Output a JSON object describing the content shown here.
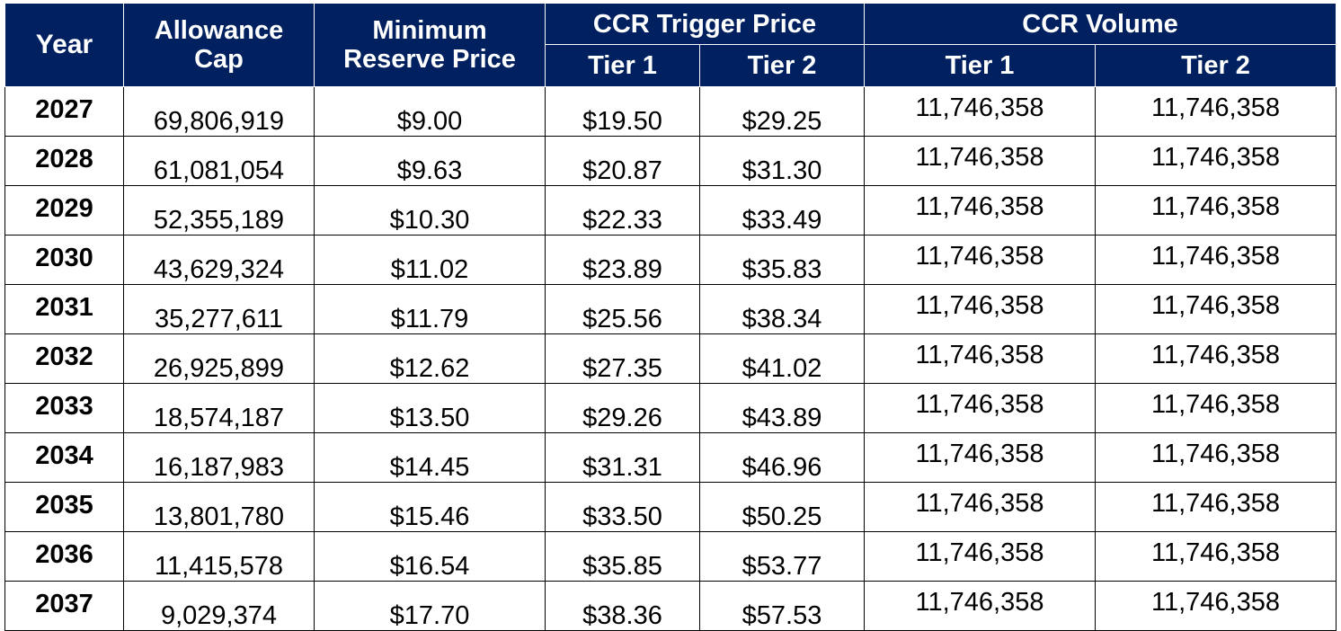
{
  "header": {
    "year": "Year",
    "cap_line1": "Allowance",
    "cap_line2": "Cap",
    "min_line1": "Minimum",
    "min_line2": "Reserve Price",
    "trigger": "CCR Trigger Price",
    "volume": "CCR Volume",
    "tier1": "Tier 1",
    "tier2": "Tier 2"
  },
  "rows": [
    {
      "year": "2027",
      "cap": "69,806,919",
      "min": "$9.00",
      "t1": "$19.50",
      "t2": "$29.25",
      "v1": "11,746,358",
      "v2": "11,746,358"
    },
    {
      "year": "2028",
      "cap": "61,081,054",
      "min": "$9.63",
      "t1": "$20.87",
      "t2": "$31.30",
      "v1": "11,746,358",
      "v2": "11,746,358"
    },
    {
      "year": "2029",
      "cap": "52,355,189",
      "min": "$10.30",
      "t1": "$22.33",
      "t2": "$33.49",
      "v1": "11,746,358",
      "v2": "11,746,358"
    },
    {
      "year": "2030",
      "cap": "43,629,324",
      "min": "$11.02",
      "t1": "$23.89",
      "t2": "$35.83",
      "v1": "11,746,358",
      "v2": "11,746,358"
    },
    {
      "year": "2031",
      "cap": "35,277,611",
      "min": "$11.79",
      "t1": "$25.56",
      "t2": "$38.34",
      "v1": "11,746,358",
      "v2": "11,746,358"
    },
    {
      "year": "2032",
      "cap": "26,925,899",
      "min": "$12.62",
      "t1": "$27.35",
      "t2": "$41.02",
      "v1": "11,746,358",
      "v2": "11,746,358"
    },
    {
      "year": "2033",
      "cap": "18,574,187",
      "min": "$13.50",
      "t1": "$29.26",
      "t2": "$43.89",
      "v1": "11,746,358",
      "v2": "11,746,358"
    },
    {
      "year": "2034",
      "cap": "16,187,983",
      "min": "$14.45",
      "t1": "$31.31",
      "t2": "$46.96",
      "v1": "11,746,358",
      "v2": "11,746,358"
    },
    {
      "year": "2035",
      "cap": "13,801,780",
      "min": "$15.46",
      "t1": "$33.50",
      "t2": "$50.25",
      "v1": "11,746,358",
      "v2": "11,746,358"
    },
    {
      "year": "2036",
      "cap": "11,415,578",
      "min": "$16.54",
      "t1": "$35.85",
      "t2": "$53.77",
      "v1": "11,746,358",
      "v2": "11,746,358"
    },
    {
      "year": "2037",
      "cap": "9,029,374",
      "min": "$17.70",
      "t1": "$38.36",
      "t2": "$57.53",
      "v1": "11,746,358",
      "v2": "11,746,358"
    }
  ],
  "colors": {
    "header_bg": "#002060",
    "header_text": "#ffffff",
    "border": "#000000"
  }
}
